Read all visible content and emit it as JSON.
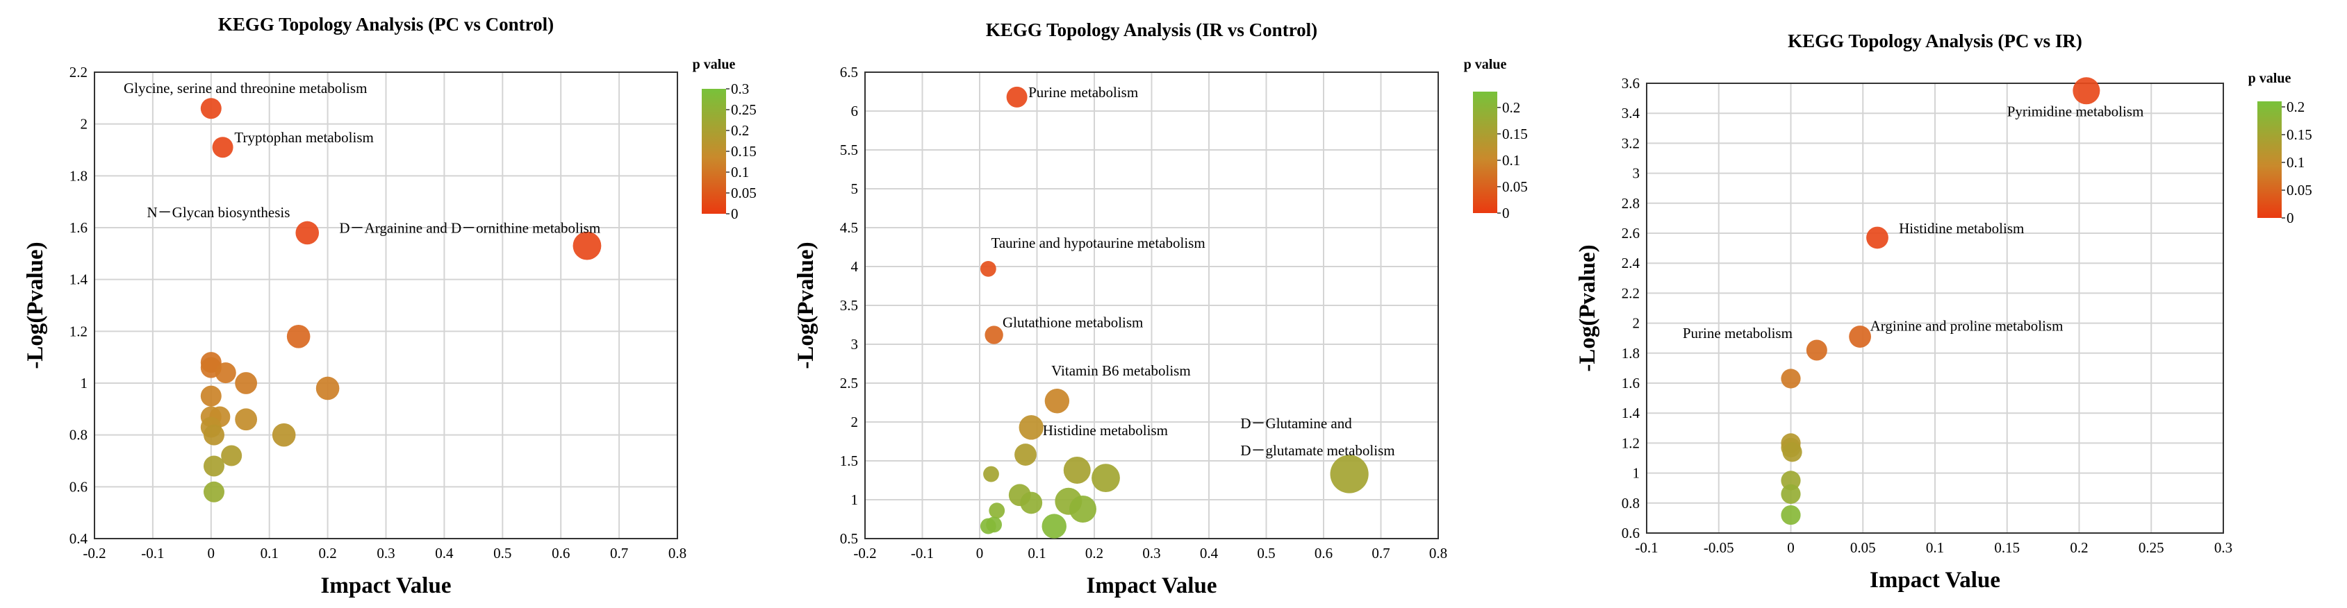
{
  "chart_data": [
    {
      "type": "scatter",
      "title": "KEGG Topology Analysis (PC vs Control)",
      "xlabel": "Impact Value",
      "ylabel": "-Log(Pvalue)",
      "xlim": [
        -0.2,
        0.8
      ],
      "ylim": [
        0.4,
        2.2
      ],
      "xticks": [
        -0.2,
        -0.1,
        0,
        0.1,
        0.2,
        0.3,
        0.4,
        0.5,
        0.6,
        0.7,
        0.8
      ],
      "yticks": [
        0.4,
        0.6,
        0.8,
        1,
        1.2,
        1.4,
        1.6,
        1.8,
        2,
        2.2
      ],
      "xtick_labels": [
        "-0.2",
        "-0.1",
        "0",
        "0.1",
        "0.2",
        "0.3",
        "0.4",
        "0.5",
        "0.6",
        "0.7",
        "0.8"
      ],
      "ytick_labels": [
        "0.4",
        "0.6",
        "0.8",
        "1",
        "1.2",
        "1.4",
        "1.6",
        "1.8",
        "2",
        "2.2"
      ],
      "grid": true,
      "colorbar": {
        "title": "p value",
        "ticks": [
          "0",
          "0.05",
          "0.1",
          "0.15",
          "0.2",
          "0.25",
          "0.3"
        ],
        "range": [
          0,
          0.3
        ],
        "colors": [
          "#e84a1b",
          "#c88a2a",
          "#7dc03a"
        ]
      },
      "points": [
        {
          "x": 0.0,
          "y": 2.06,
          "size": 1
        },
        {
          "x": 0.02,
          "y": 1.91,
          "size": 1
        },
        {
          "x": 0.165,
          "y": 1.58,
          "size": 1.2
        },
        {
          "x": 0.645,
          "y": 1.53,
          "size": 1.6
        },
        {
          "x": 0.15,
          "y": 1.18,
          "size": 1.2
        },
        {
          "x": 0.0,
          "y": 1.08,
          "size": 1
        },
        {
          "x": 0.0,
          "y": 1.06,
          "size": 1
        },
        {
          "x": 0.025,
          "y": 1.04,
          "size": 1
        },
        {
          "x": 0.06,
          "y": 1.0,
          "size": 1.1
        },
        {
          "x": 0.2,
          "y": 0.98,
          "size": 1.2
        },
        {
          "x": 0.0,
          "y": 0.95,
          "size": 1
        },
        {
          "x": 0.0,
          "y": 0.87,
          "size": 1
        },
        {
          "x": 0.015,
          "y": 0.87,
          "size": 1
        },
        {
          "x": 0.06,
          "y": 0.86,
          "size": 1.1
        },
        {
          "x": 0.0,
          "y": 0.83,
          "size": 1
        },
        {
          "x": 0.005,
          "y": 0.8,
          "size": 1
        },
        {
          "x": 0.125,
          "y": 0.8,
          "size": 1.2
        },
        {
          "x": 0.035,
          "y": 0.72,
          "size": 1
        },
        {
          "x": 0.005,
          "y": 0.68,
          "size": 1
        },
        {
          "x": 0.005,
          "y": 0.58,
          "size": 1
        }
      ],
      "annotations": [
        {
          "text": "Glycine, serine and threonine metabolism",
          "x": -0.15,
          "y": 2.12
        },
        {
          "text": "Tryptophan metabolism",
          "x": 0.04,
          "y": 1.93
        },
        {
          "text": "N－Glycan biosynthesis",
          "x": -0.11,
          "y": 1.64
        },
        {
          "text": "D－Argainine and D－ornithine metabolism",
          "x": 0.22,
          "y": 1.58
        }
      ]
    },
    {
      "type": "scatter",
      "title": "KEGG Topology Analysis (IR vs Control)",
      "xlabel": "Impact Value",
      "ylabel": "-Log(Pvalue)",
      "xlim": [
        -0.2,
        0.8
      ],
      "ylim": [
        0.5,
        6.5
      ],
      "xticks": [
        -0.2,
        -0.1,
        0,
        0.1,
        0.2,
        0.3,
        0.4,
        0.5,
        0.6,
        0.7,
        0.8
      ],
      "yticks": [
        0.5,
        1,
        1.5,
        2,
        2.5,
        3,
        3.5,
        4,
        4.5,
        5,
        5.5,
        6,
        6.5
      ],
      "xtick_labels": [
        "-0.2",
        "-0.1",
        "0",
        "0.1",
        "0.2",
        "0.3",
        "0.4",
        "0.5",
        "0.6",
        "0.7",
        "0.8"
      ],
      "ytick_labels": [
        "0.5",
        "1",
        "1.5",
        "2",
        "2.5",
        "3",
        "3.5",
        "4",
        "4.5",
        "5",
        "5.5",
        "6",
        "6.5"
      ],
      "grid": true,
      "colorbar": {
        "title": "p value",
        "ticks": [
          "0",
          "0.05",
          "0.1",
          "0.15",
          "0.2"
        ],
        "range": [
          0,
          0.23
        ],
        "colors": [
          "#e84a1b",
          "#c88a2a",
          "#7dc03a"
        ]
      },
      "points": [
        {
          "x": 0.065,
          "y": 6.18,
          "size": 1
        },
        {
          "x": 0.015,
          "y": 3.97,
          "size": 0.6
        },
        {
          "x": 0.025,
          "y": 3.12,
          "size": 0.8
        },
        {
          "x": 0.135,
          "y": 2.27,
          "size": 1.3
        },
        {
          "x": 0.09,
          "y": 1.93,
          "size": 1.3
        },
        {
          "x": 0.08,
          "y": 1.58,
          "size": 1.1
        },
        {
          "x": 0.02,
          "y": 1.33,
          "size": 0.6
        },
        {
          "x": 0.17,
          "y": 1.38,
          "size": 1.5
        },
        {
          "x": 0.22,
          "y": 1.28,
          "size": 1.6
        },
        {
          "x": 0.645,
          "y": 1.33,
          "size": 2.4
        },
        {
          "x": 0.07,
          "y": 1.06,
          "size": 1.1
        },
        {
          "x": 0.09,
          "y": 0.96,
          "size": 1.1
        },
        {
          "x": 0.155,
          "y": 0.98,
          "size": 1.5
        },
        {
          "x": 0.18,
          "y": 0.88,
          "size": 1.5
        },
        {
          "x": 0.03,
          "y": 0.86,
          "size": 0.6
        },
        {
          "x": 0.13,
          "y": 0.66,
          "size": 1.3
        },
        {
          "x": 0.015,
          "y": 0.66,
          "size": 0.6
        },
        {
          "x": 0.025,
          "y": 0.68,
          "size": 0.6
        }
      ],
      "annotations": [
        {
          "text": "Purine metabolism",
          "x": 0.085,
          "y": 6.18
        },
        {
          "text": "Taurine and hypotaurine metabolism",
          "x": 0.02,
          "y": 4.24
        },
        {
          "text": "Glutathione metabolism",
          "x": 0.04,
          "y": 3.22
        },
        {
          "text": "Vitamin B6 metabolism",
          "x": 0.125,
          "y": 2.6
        },
        {
          "text": "Histidine metabolism",
          "x": 0.11,
          "y": 1.83
        },
        {
          "text": "D－Glutamine and",
          "x": 0.455,
          "y": 1.92
        },
        {
          "text": "D－glutamate metabolism",
          "x": 0.455,
          "y": 1.57
        }
      ]
    },
    {
      "type": "scatter",
      "title": "KEGG Topology Analysis (PC vs IR)",
      "xlabel": "Impact Value",
      "ylabel": "-Log(Pvalue)",
      "xlim": [
        -0.1,
        0.3
      ],
      "ylim": [
        0.6,
        3.6
      ],
      "xticks": [
        -0.1,
        -0.05,
        0,
        0.05,
        0.1,
        0.15,
        0.2,
        0.25,
        0.3
      ],
      "yticks": [
        0.6,
        0.8,
        1,
        1.2,
        1.4,
        1.6,
        1.8,
        2,
        2.2,
        2.4,
        2.6,
        2.8,
        3,
        3.2,
        3.4,
        3.6
      ],
      "xtick_labels": [
        "-0.1",
        "-0.05",
        "0",
        "0.05",
        "0.1",
        "0.15",
        "0.2",
        "0.25",
        "0.3"
      ],
      "ytick_labels": [
        "0.6",
        "0.8",
        "1",
        "1.2",
        "1.4",
        "1.6",
        "1.8",
        "2",
        "2.2",
        "2.4",
        "2.6",
        "2.8",
        "3",
        "3.2",
        "3.4",
        "3.6"
      ],
      "grid": true,
      "colorbar": {
        "title": "p value",
        "ticks": [
          "0",
          "0.05",
          "0.1",
          "0.15",
          "0.2"
        ],
        "range": [
          0,
          0.21
        ],
        "colors": [
          "#e84a1b",
          "#c88a2a",
          "#7dc03a"
        ]
      },
      "points": [
        {
          "x": 0.205,
          "y": 3.55,
          "size": 1.5
        },
        {
          "x": 0.06,
          "y": 2.57,
          "size": 1.1
        },
        {
          "x": 0.048,
          "y": 1.91,
          "size": 1.1
        },
        {
          "x": 0.018,
          "y": 1.82,
          "size": 1
        },
        {
          "x": 0.0,
          "y": 1.63,
          "size": 0.9
        },
        {
          "x": 0.0,
          "y": 1.2,
          "size": 0.9
        },
        {
          "x": 0.0,
          "y": 1.17,
          "size": 0.9
        },
        {
          "x": 0.001,
          "y": 1.14,
          "size": 0.9
        },
        {
          "x": 0.0,
          "y": 0.95,
          "size": 0.9
        },
        {
          "x": 0.0,
          "y": 0.86,
          "size": 0.9
        },
        {
          "x": 0.0,
          "y": 0.72,
          "size": 0.9
        }
      ],
      "annotations": [
        {
          "text": "Pyrimidine metabolism",
          "x": 0.15,
          "y": 3.38
        },
        {
          "text": "Histidine metabolism",
          "x": 0.075,
          "y": 2.6
        },
        {
          "text": "Arginine and proline metabolism",
          "x": 0.055,
          "y": 1.95
        },
        {
          "text": "Purine metabolism",
          "x": -0.075,
          "y": 1.9
        }
      ]
    }
  ]
}
